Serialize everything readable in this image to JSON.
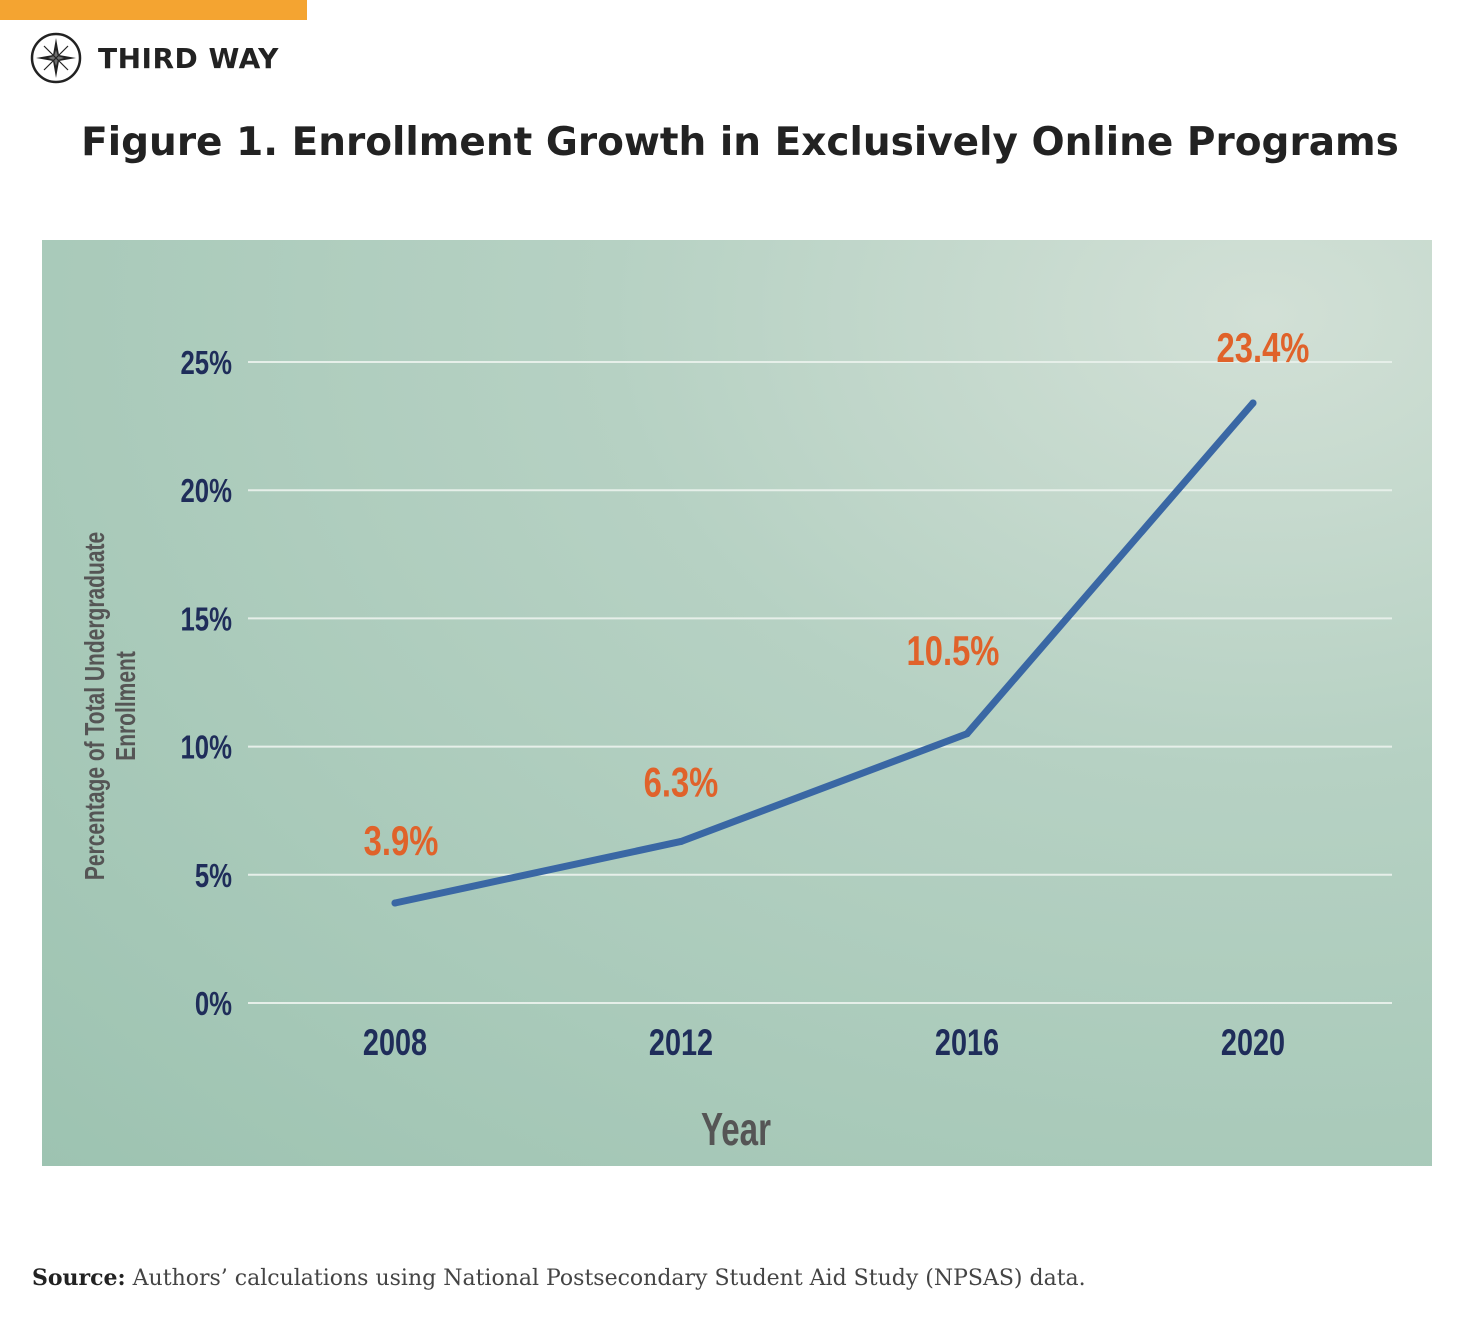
{
  "brand": {
    "name": "THIRD WAY",
    "logo_icon": "compass-star-icon",
    "accent_color": "#f4a431"
  },
  "figure_title": "Figure 1. Enrollment Growth in Exclusively Online Programs",
  "source": {
    "label": "Source:",
    "text": "Authors’ calculations using National Postsecondary Student Aid Study (NPSAS) data."
  },
  "chart_data": {
    "type": "line",
    "title": "Figure 1. Enrollment Growth in Exclusively Online Programs",
    "xlabel": "Year",
    "ylabel_lines": [
      "Percentage of Total Undergraduate",
      "Enrollment"
    ],
    "categories": [
      "2008",
      "2012",
      "2016",
      "2020"
    ],
    "series": [
      {
        "values": [
          3.9,
          6.3,
          10.5,
          23.4
        ],
        "labels": [
          "3.9%",
          "6.3%",
          "10.5%",
          "23.4%"
        ],
        "color": "#3a67a4"
      }
    ],
    "yticks": [
      0,
      5,
      10,
      15,
      20,
      25
    ],
    "ytick_labels": [
      "0%",
      "5%",
      "10%",
      "15%",
      "20%",
      "25%"
    ],
    "ylim": [
      0,
      25
    ],
    "grid": true,
    "colors": {
      "background": "#a9cab9",
      "gridline": "#e6efe9",
      "tick_text": "#1f2d5a",
      "data_label": "#e0622a",
      "axis_title": "#555555"
    }
  }
}
